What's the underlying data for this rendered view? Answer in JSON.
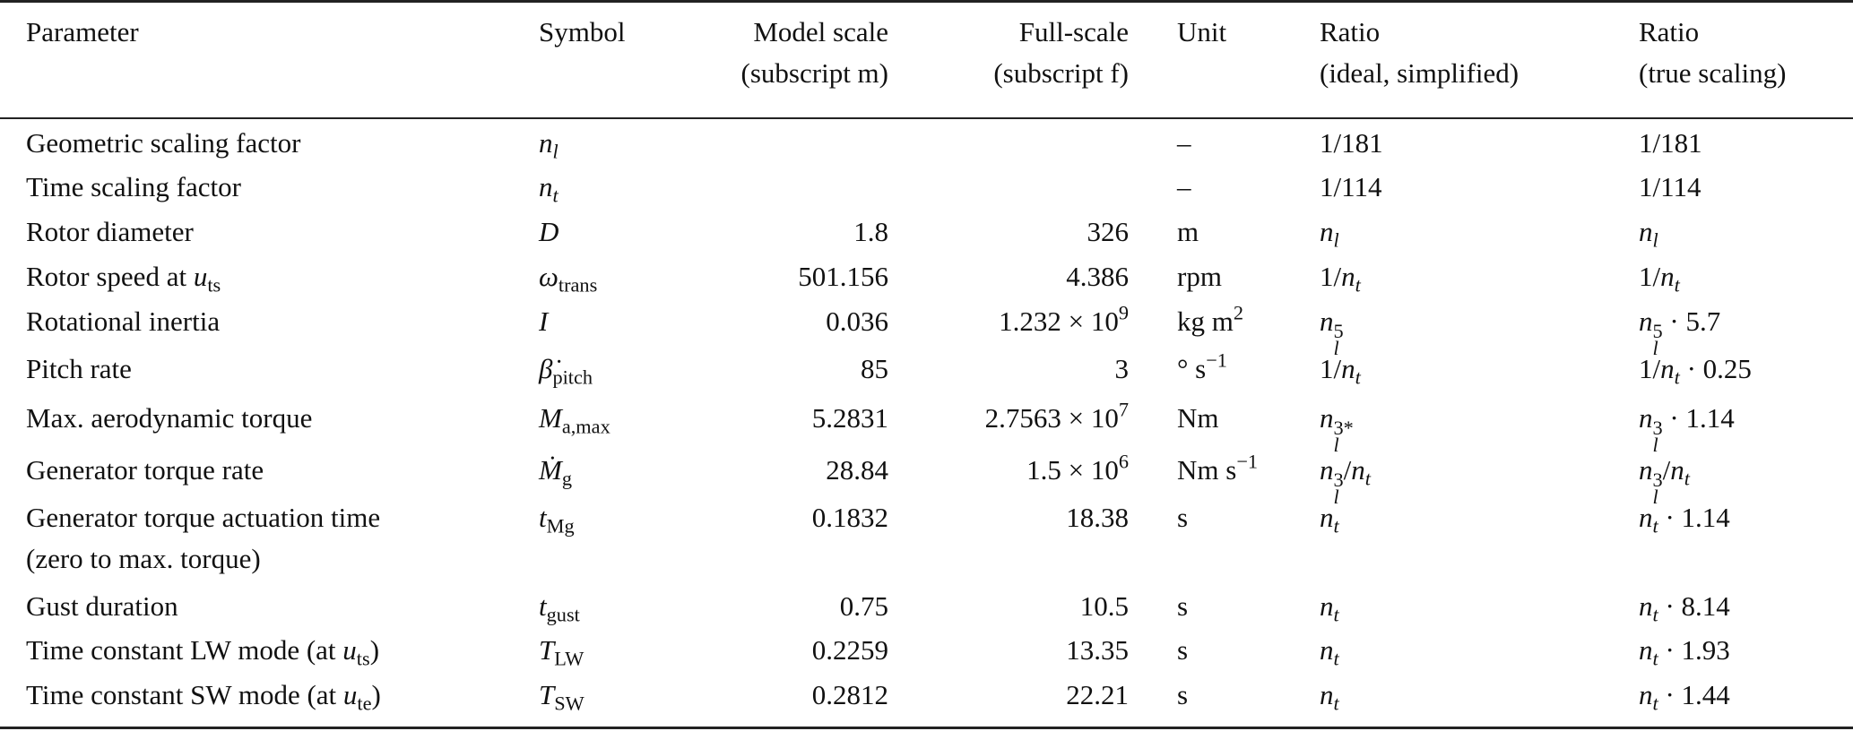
{
  "header": {
    "parameter": "Parameter",
    "symbol": "Symbol",
    "model_1": "Model scale",
    "model_2": "(subscript m)",
    "full_1": "Full-scale",
    "full_2": "(subscript f)",
    "unit": "Unit",
    "ideal_1": "Ratio",
    "ideal_2": "(ideal, simplified)",
    "true_1": "Ratio",
    "true_2": "(true scaling)"
  },
  "rows": [
    {
      "parameter": "Geometric scaling factor",
      "symbol": "<i>n</i><sub><i>l</i></sub>",
      "model": "",
      "full": "",
      "unit": "–",
      "ideal": "1/181",
      "true": "1/181"
    },
    {
      "parameter": "Time scaling factor",
      "symbol": "<i>n</i><sub><i>t</i></sub>",
      "model": "",
      "full": "",
      "unit": "–",
      "ideal": "1/114",
      "true": "1/114"
    },
    {
      "parameter": "Rotor diameter",
      "symbol": "<i>D</i>",
      "model": "1.8",
      "full": "326",
      "unit": "m",
      "ideal": "<i>n</i><sub><i>l</i></sub>",
      "true": "<i>n</i><sub><i>l</i></sub>"
    },
    {
      "parameter": "Rotor speed at <i>u</i><sub>ts</sub>",
      "symbol": "<i>ω</i><sub>trans</sub>",
      "model": "501.156",
      "full": "4.386",
      "unit": "rpm",
      "ideal": "1/<i>n</i><sub><i>t</i></sub>",
      "true": "1/<i>n</i><sub><i>t</i></sub>"
    },
    {
      "parameter": "Rotational inertia",
      "symbol": "<i>I</i>",
      "model": "0.036",
      "full": "1.232 × 10<sup>9</sup>",
      "unit": "kg m<sup>2</sup>",
      "ideal": "<i>n</i><span class=\"ss\"><span>5</span><span><i>l</i></span></span>",
      "true": "<i>n</i><span class=\"ss\"><span>5</span><span><i>l</i></span></span> · 5.7"
    },
    {
      "parameter": "Pitch rate",
      "symbol": "<i>β̇</i><sub>pitch</sub>",
      "model": "85",
      "full": "3",
      "unit": "° s<sup>−1</sup>",
      "ideal": "1/<i>n</i><sub><i>t</i></sub>",
      "true": "1/<i>n</i><sub><i>t</i></sub> · 0.25"
    },
    {
      "parameter": "Max. aerodynamic torque",
      "symbol": "<i>M</i><sub>a,max</sub>",
      "model": "5.2831",
      "full": "2.7563 × 10<sup>7</sup>",
      "unit": "Nm",
      "ideal": "<i>n</i><span class=\"ss\"><span>3*</span><span><i>l</i></span></span>",
      "true": "<i>n</i><span class=\"ss\"><span>3</span><span><i>l</i></span></span> · 1.14"
    },
    {
      "parameter": "Generator torque rate",
      "symbol": "<i>Ṁ</i><sub>g</sub>",
      "model": "28.84",
      "full": "1.5 × 10<sup>6</sup>",
      "unit": "Nm s<sup>−1</sup>",
      "ideal": "<i>n</i><span class=\"ss\"><span>3</span><span><i>l</i></span></span>/<i>n</i><sub><i>t</i></sub>",
      "true": "<i>n</i><span class=\"ss\"><span>3</span><span><i>l</i></span></span>/<i>n</i><sub><i>t</i></sub>"
    },
    {
      "parameter": "Generator torque actuation time",
      "symbol": "<i>t</i><sub>Mg</sub>",
      "model": "0.1832",
      "full": "18.38",
      "unit": "s",
      "ideal": "<i>n</i><sub><i>t</i></sub>",
      "true": "<i>n</i><sub><i>t</i></sub> · 1.14"
    },
    {
      "parameter": "(zero to max. torque)",
      "symbol": "",
      "model": "",
      "full": "",
      "unit": "",
      "ideal": "",
      "true": ""
    },
    {
      "parameter": "Gust duration",
      "symbol": "<i>t</i><sub>gust</sub>",
      "model": "0.75",
      "full": "10.5",
      "unit": "s",
      "ideal": "<i>n</i><sub><i>t</i></sub>",
      "true": "<i>n</i><sub><i>t</i></sub> · 8.14"
    },
    {
      "parameter": "Time constant LW mode (at <i>u</i><sub>ts</sub>)",
      "symbol": "<i>T</i><sub>LW</sub>",
      "model": "0.2259",
      "full": "13.35",
      "unit": "s",
      "ideal": "<i>n</i><sub><i>t</i></sub>",
      "true": "<i>n</i><sub><i>t</i></sub> · 1.93"
    },
    {
      "parameter": "Time constant SW mode (at <i>u</i><sub>te</sub>)",
      "symbol": "<i>T</i><sub>SW</sub>",
      "model": "0.2812",
      "full": "22.21",
      "unit": "s",
      "ideal": "<i>n</i><sub><i>t</i></sub>",
      "true": "<i>n</i><sub><i>t</i></sub> · 1.44"
    }
  ]
}
